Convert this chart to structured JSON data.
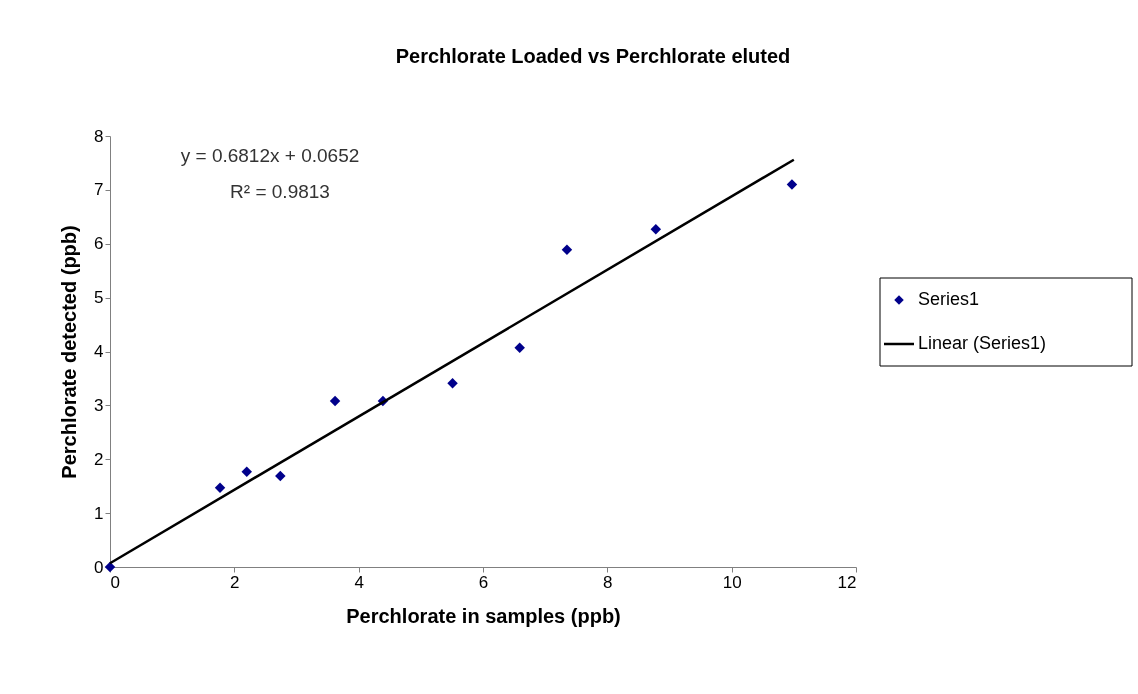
{
  "chart_data": {
    "type": "scatter",
    "title": "Perchlorate Loaded vs Perchlorate eluted",
    "xlabel": "Perchlorate in samples (ppb)",
    "ylabel": "Perchlorate detected (ppb)",
    "annotations": [
      "y = 0.6812x + 0.0652",
      "R² = 0.9813"
    ],
    "series": [
      {
        "name": "Series1",
        "color": "#00008b",
        "marker": "diamond",
        "x": [
          0,
          1.77,
          2.2,
          2.74,
          3.62,
          4.39,
          5.51,
          6.59,
          7.35,
          8.78,
          10.97
        ],
        "values": [
          0,
          1.47,
          1.77,
          1.69,
          3.08,
          3.08,
          3.41,
          4.07,
          5.89,
          6.27,
          7.1
        ]
      },
      {
        "name": "Linear (Series1)",
        "color": "#000000",
        "type": "line",
        "marker": "none",
        "line_style": "solid",
        "x": [
          0,
          11
        ],
        "values": [
          0.07,
          7.56
        ]
      }
    ],
    "xlim": [
      0,
      12
    ],
    "xticks": [
      0,
      2,
      4,
      6,
      8,
      10,
      12
    ],
    "ylim": [
      0,
      8
    ],
    "yticks": [
      0,
      1,
      2,
      3,
      4,
      5,
      6,
      7,
      8
    ],
    "grid": false,
    "legend": "right"
  }
}
